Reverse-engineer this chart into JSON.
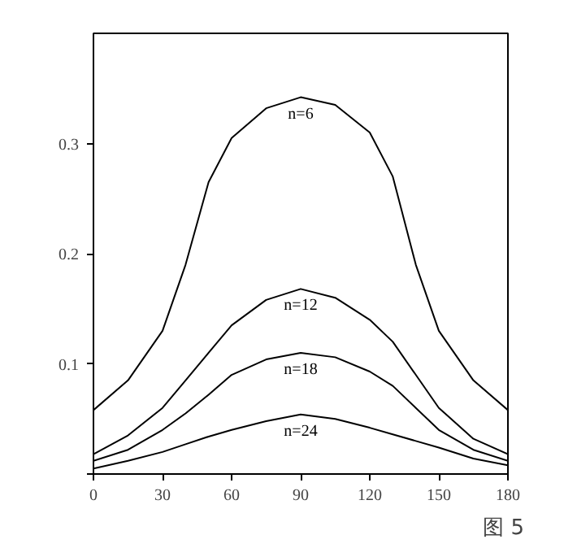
{
  "chart_data": {
    "type": "line",
    "x": [
      0,
      15,
      30,
      40,
      50,
      60,
      75,
      90,
      105,
      120,
      130,
      140,
      150,
      165,
      180
    ],
    "series": [
      {
        "name": "n=6",
        "color": "#000000",
        "values": [
          0.058,
          0.085,
          0.13,
          0.19,
          0.265,
          0.305,
          0.332,
          0.342,
          0.335,
          0.31,
          0.27,
          0.19,
          0.13,
          0.085,
          0.058
        ]
      },
      {
        "name": "n=12",
        "color": "#000000",
        "values": [
          0.018,
          0.035,
          0.06,
          0.085,
          0.11,
          0.135,
          0.158,
          0.168,
          0.16,
          0.14,
          0.12,
          0.09,
          0.06,
          0.032,
          0.018
        ]
      },
      {
        "name": "n=18",
        "color": "#000000",
        "values": [
          0.012,
          0.022,
          0.04,
          0.055,
          0.072,
          0.09,
          0.104,
          0.11,
          0.106,
          0.093,
          0.08,
          0.06,
          0.04,
          0.022,
          0.012
        ]
      },
      {
        "name": "n=24",
        "color": "#000000",
        "values": [
          0.005,
          0.012,
          0.02,
          0.027,
          0.034,
          0.04,
          0.048,
          0.054,
          0.05,
          0.042,
          0.036,
          0.03,
          0.024,
          0.014,
          0.008
        ]
      }
    ],
    "annotations": [
      "图 5"
    ],
    "xlim": [
      0,
      180
    ],
    "xticks": [
      0,
      30,
      60,
      90,
      120,
      150,
      180
    ],
    "ylim": [
      0,
      0.4
    ],
    "yticks": [
      {
        "value": 0,
        "label": null
      },
      0.1,
      0.2,
      0.3
    ],
    "grid": false,
    "marker": "none",
    "line_style": "solid"
  }
}
